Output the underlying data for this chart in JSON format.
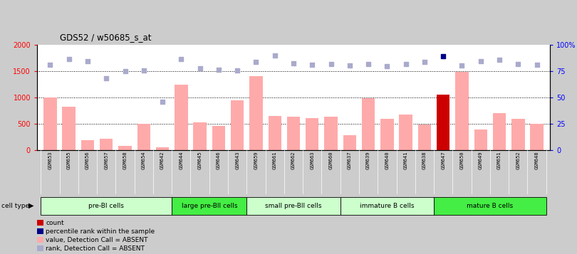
{
  "title": "GDS52 / w50685_s_at",
  "samples": [
    "GSM653",
    "GSM655",
    "GSM656",
    "GSM657",
    "GSM658",
    "GSM654",
    "GSM642",
    "GSM644",
    "GSM645",
    "GSM646",
    "GSM643",
    "GSM659",
    "GSM661",
    "GSM662",
    "GSM663",
    "GSM660",
    "GSM637",
    "GSM639",
    "GSM640",
    "GSM641",
    "GSM638",
    "GSM647",
    "GSM650",
    "GSM649",
    "GSM651",
    "GSM652",
    "GSM648"
  ],
  "bar_values": [
    1000,
    830,
    190,
    220,
    80,
    500,
    60,
    1250,
    530,
    460,
    940,
    1400,
    650,
    640,
    610,
    640,
    280,
    980,
    600,
    680,
    480,
    1050,
    1490,
    390,
    700,
    600,
    500
  ],
  "bar_colors": [
    "#ffaaaa",
    "#ffaaaa",
    "#ffaaaa",
    "#ffaaaa",
    "#ffaaaa",
    "#ffaaaa",
    "#ffaaaa",
    "#ffaaaa",
    "#ffaaaa",
    "#ffaaaa",
    "#ffaaaa",
    "#ffaaaa",
    "#ffaaaa",
    "#ffaaaa",
    "#ffaaaa",
    "#ffaaaa",
    "#ffaaaa",
    "#ffaaaa",
    "#ffaaaa",
    "#ffaaaa",
    "#ffaaaa",
    "#cc0000",
    "#ffaaaa",
    "#ffaaaa",
    "#ffaaaa",
    "#ffaaaa",
    "#ffaaaa"
  ],
  "rank_values": [
    1620,
    1730,
    1690,
    1360,
    1500,
    1510,
    920,
    1730,
    1560,
    1530,
    1510,
    1680,
    1800,
    1650,
    1620,
    1630,
    1610,
    1640,
    1590,
    1640,
    1670,
    1790,
    1610,
    1690,
    1710,
    1640,
    1620
  ],
  "percentile_dark": [
    21
  ],
  "cell_groups": [
    {
      "label": "pre-BI cells",
      "start": 0,
      "end": 6,
      "color": "#ccffcc"
    },
    {
      "label": "large pre-BII cells",
      "start": 7,
      "end": 10,
      "color": "#44ee44"
    },
    {
      "label": "small pre-BII cells",
      "start": 11,
      "end": 15,
      "color": "#ccffcc"
    },
    {
      "label": "immature B cells",
      "start": 16,
      "end": 20,
      "color": "#ccffcc"
    },
    {
      "label": "mature B cells",
      "start": 21,
      "end": 26,
      "color": "#44ee44"
    }
  ],
  "ylim": [
    0,
    2000
  ],
  "yticks": [
    0,
    500,
    1000,
    1500,
    2000
  ],
  "ytick_labels_right": [
    "0",
    "25",
    "50",
    "75",
    "100%"
  ],
  "yticks_right": [
    0,
    500,
    1000,
    1500,
    2000
  ],
  "grid_vals": [
    500,
    1000,
    1500
  ],
  "fig_bg": "#cccccc",
  "plot_bg": "#ffffff",
  "xtick_bg": "#bbbbbb",
  "cell_type_row_bg": "#dddddd"
}
